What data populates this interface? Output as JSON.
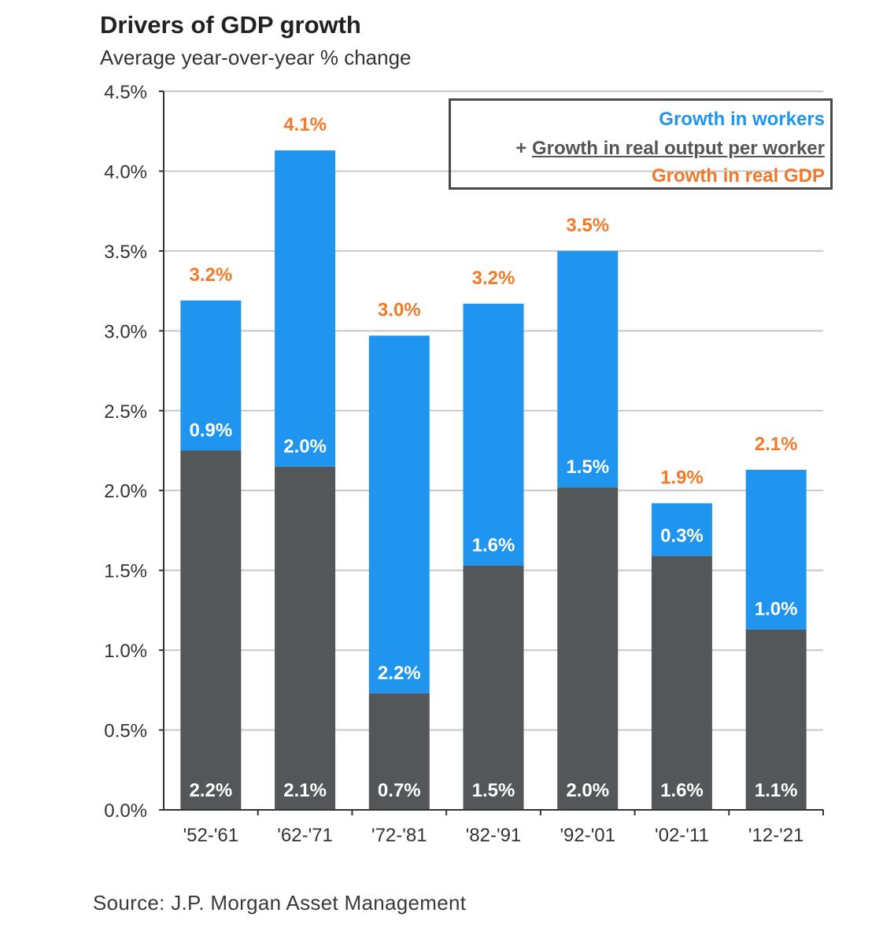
{
  "title": "Drivers of GDP growth",
  "subtitle": "Average year-over-year % change",
  "source": "Source: J.P. Morgan Asset Management",
  "legend": {
    "workers": "Growth in workers",
    "output_prefix": "+ ",
    "output": "Growth in real output per worker",
    "gdp": "Growth in real GDP"
  },
  "colors": {
    "workers": "#1f95ef",
    "output": "#545759",
    "gdp_label": "#f07a2a",
    "grid": "#c8c8c8",
    "axis": "#333333"
  },
  "chart_data": {
    "type": "bar",
    "stacked": true,
    "categories": [
      "'52-'61",
      "'62-'71",
      "'72-'81",
      "'82-'91",
      "'92-'01",
      "'02-'11",
      "'12-'21"
    ],
    "series": [
      {
        "name": "Growth in real output per worker",
        "values": [
          2.25,
          2.15,
          0.73,
          1.53,
          2.02,
          1.59,
          1.13
        ],
        "labels": [
          "2.2%",
          "2.1%",
          "0.7%",
          "1.5%",
          "2.0%",
          "1.6%",
          "1.1%"
        ]
      },
      {
        "name": "Growth in workers",
        "values": [
          0.94,
          1.98,
          2.24,
          1.64,
          1.48,
          0.33,
          1.0
        ],
        "labels": [
          "0.9%",
          "2.0%",
          "2.2%",
          "1.6%",
          "1.5%",
          "0.3%",
          "1.0%"
        ]
      }
    ],
    "totals": [
      3.19,
      4.13,
      2.97,
      3.17,
      3.5,
      1.92,
      2.13
    ],
    "total_labels": [
      "3.2%",
      "4.1%",
      "3.0%",
      "3.2%",
      "3.5%",
      "1.9%",
      "2.1%"
    ],
    "ylim": [
      0,
      4.5
    ],
    "yticks": [
      "0.0%",
      "0.5%",
      "1.0%",
      "1.5%",
      "2.0%",
      "2.5%",
      "3.0%",
      "3.5%",
      "4.0%",
      "4.5%"
    ],
    "grid": true,
    "legend_position": "top-right"
  }
}
